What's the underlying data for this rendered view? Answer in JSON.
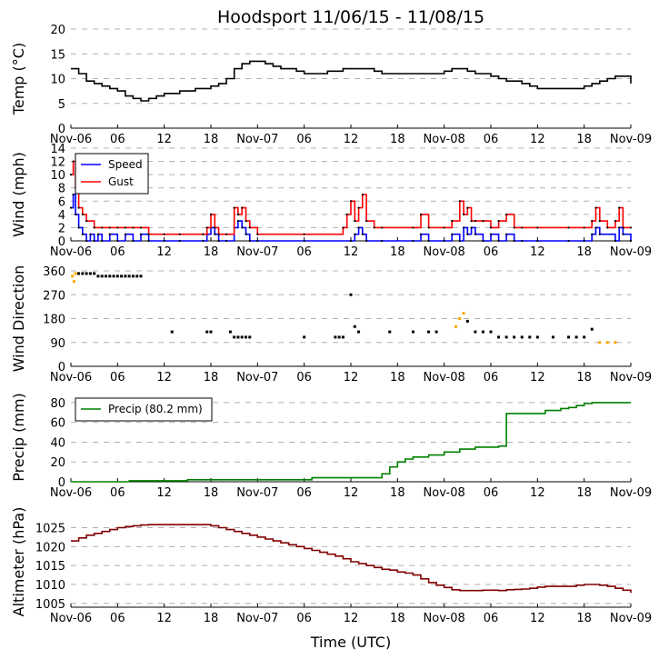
{
  "chart_data": {
    "title": "Hoodsport 11/06/15 - 11/08/15",
    "xlabel": "Time (UTC)",
    "x_unit": "hours since 2015-11-06 00:00 UTC",
    "xlim": [
      0,
      72
    ],
    "x_ticks": [
      {
        "h": 0,
        "label": "Nov-06"
      },
      {
        "h": 6,
        "label": "06"
      },
      {
        "h": 12,
        "label": "12"
      },
      {
        "h": 18,
        "label": "18"
      },
      {
        "h": 24,
        "label": "Nov-07"
      },
      {
        "h": 30,
        "label": "06"
      },
      {
        "h": 36,
        "label": "12"
      },
      {
        "h": 42,
        "label": "18"
      },
      {
        "h": 48,
        "label": "Nov-08"
      },
      {
        "h": 54,
        "label": "06"
      },
      {
        "h": 60,
        "label": "12"
      },
      {
        "h": 66,
        "label": "18"
      },
      {
        "h": 72,
        "label": "Nov-09"
      }
    ],
    "panels": [
      {
        "id": "temp",
        "type": "line",
        "ylabel": "Temp (°C)",
        "ylim": [
          0,
          20
        ],
        "yticks": [
          0,
          5,
          10,
          15,
          20
        ],
        "series": [
          {
            "name": "Temp",
            "color": "#000000",
            "x": [
              0,
              1,
              2,
              3,
              4,
              5,
              6,
              7,
              8,
              9,
              10,
              11,
              12,
              13,
              14,
              15,
              16,
              17,
              18,
              19,
              20,
              21,
              22,
              23,
              24,
              25,
              26,
              27,
              28,
              29,
              30,
              31,
              32,
              33,
              34,
              35,
              36,
              37,
              38,
              39,
              40,
              41,
              42,
              43,
              44,
              45,
              46,
              47,
              48,
              49,
              50,
              51,
              52,
              53,
              54,
              55,
              56,
              57,
              58,
              59,
              60,
              61,
              62,
              63,
              64,
              65,
              66,
              67,
              68,
              69,
              70,
              71,
              72
            ],
            "y": [
              12,
              11,
              9.5,
              9,
              8.5,
              8,
              7.5,
              6.5,
              6,
              5.5,
              6,
              6.5,
              7,
              7,
              7.5,
              7.5,
              8,
              8,
              8.5,
              9,
              10,
              12,
              13,
              13.5,
              13.5,
              13,
              12.5,
              12,
              12,
              11.5,
              11,
              11,
              11,
              11.5,
              11.5,
              12,
              12,
              12,
              12,
              11.5,
              11,
              11,
              11,
              11,
              11,
              11,
              11,
              11,
              11.5,
              12,
              12,
              11.5,
              11,
              11,
              10.5,
              10,
              9.5,
              9.5,
              9,
              8.5,
              8,
              8,
              8,
              8,
              8,
              8,
              8.5,
              9,
              9.5,
              10,
              10.5,
              10.5,
              9
            ]
          }
        ]
      },
      {
        "id": "wind",
        "type": "line",
        "ylabel": "Wind (mph)",
        "ylim": [
          0,
          14
        ],
        "yticks": [
          0,
          2,
          4,
          6,
          8,
          10,
          12,
          14
        ],
        "legend": {
          "position": "top-left"
        },
        "series": [
          {
            "name": "Speed",
            "color": "#0000ff",
            "x": [
              0,
              0.3,
              0.6,
              1,
              1.5,
              2,
              2.5,
              3,
              3.5,
              4,
              5,
              6,
              7,
              8,
              9,
              10,
              12,
              14,
              17,
              17.5,
              18,
              18.5,
              19,
              20,
              21,
              21.5,
              22,
              22.5,
              23,
              24,
              30,
              36,
              36.5,
              37,
              37.5,
              38,
              40,
              44,
              45,
              46,
              48,
              49,
              50,
              50.5,
              51,
              51.5,
              52,
              53,
              54,
              55,
              56,
              57,
              58,
              60,
              64,
              66,
              67,
              67.5,
              68,
              70,
              70.5,
              71,
              72
            ],
            "y": [
              5,
              7,
              4,
              2,
              1,
              0,
              1,
              0,
              1,
              0,
              1,
              0,
              1,
              0,
              1,
              0,
              0,
              0,
              0,
              1,
              2,
              1,
              0,
              0,
              2,
              3,
              2,
              1,
              0,
              0,
              0,
              0,
              1,
              2,
              1,
              0,
              0,
              0,
              1,
              0,
              0,
              1,
              0,
              2,
              1,
              2,
              1,
              0,
              1,
              0,
              1,
              0,
              0,
              0,
              0,
              0,
              1,
              2,
              1,
              0,
              2,
              1,
              0
            ]
          },
          {
            "name": "Gust",
            "color": "#ff0000",
            "x": [
              0,
              0.3,
              0.6,
              1,
              1.5,
              2,
              3,
              4,
              5,
              6,
              7,
              8,
              9,
              10,
              12,
              14,
              17,
              17.5,
              18,
              18.5,
              19,
              20,
              21,
              21.5,
              22,
              22.5,
              23,
              24,
              30,
              35,
              35.5,
              36,
              36.5,
              37,
              37.5,
              38,
              39,
              40,
              44,
              45,
              46,
              48,
              49,
              50,
              50.5,
              51,
              51.5,
              52,
              53,
              54,
              55,
              56,
              57,
              58,
              60,
              64,
              66,
              67,
              67.5,
              68,
              69,
              70,
              70.5,
              71,
              72
            ],
            "y": [
              10,
              12,
              8,
              5,
              4,
              3,
              2,
              2,
              2,
              2,
              2,
              2,
              2,
              1,
              1,
              1,
              1,
              2,
              4,
              2,
              1,
              1,
              5,
              4,
              5,
              3,
              2,
              1,
              1,
              2,
              4,
              6,
              3,
              5,
              7,
              3,
              2,
              2,
              2,
              4,
              2,
              2,
              3,
              6,
              4,
              5,
              3,
              3,
              3,
              2,
              3,
              4,
              2,
              2,
              2,
              2,
              2,
              3,
              5,
              3,
              2,
              3,
              5,
              2,
              2
            ]
          }
        ]
      },
      {
        "id": "winddir",
        "type": "scatter",
        "ylabel": "Wind Direction",
        "ylim": [
          0,
          360
        ],
        "yticks": [
          0,
          90,
          180,
          270,
          360
        ],
        "series": [
          {
            "name": "Direction",
            "color": "#000000",
            "highlight_color": "#ffa500",
            "x": [
              0.2,
              0.4,
              0.6,
              1,
              1.5,
              2,
              2.5,
              3,
              3.5,
              4,
              4.5,
              5,
              5.5,
              6,
              6.5,
              7,
              7.5,
              8,
              8.5,
              9,
              13,
              17.5,
              18,
              20.5,
              21,
              21.5,
              22,
              22.5,
              23,
              30,
              34,
              34.5,
              35,
              36,
              36.5,
              37,
              41,
              44,
              46,
              47,
              49.5,
              50,
              50.5,
              51,
              52,
              53,
              54,
              55,
              56,
              57,
              58,
              59,
              60,
              62,
              64,
              65,
              66,
              67,
              68,
              69,
              70
            ],
            "y": [
              340,
              320,
              350,
              350,
              350,
              350,
              350,
              350,
              340,
              340,
              340,
              340,
              340,
              340,
              340,
              340,
              340,
              340,
              340,
              340,
              130,
              130,
              130,
              130,
              110,
              110,
              110,
              110,
              110,
              110,
              110,
              110,
              110,
              270,
              150,
              130,
              130,
              130,
              130,
              130,
              150,
              180,
              200,
              170,
              130,
              130,
              130,
              110,
              110,
              110,
              110,
              110,
              110,
              110,
              110,
              110,
              110,
              140,
              90,
              90,
              90
            ]
          }
        ]
      },
      {
        "id": "precip",
        "type": "line",
        "ylabel": "Precip (mm)",
        "ylim": [
          0,
          90
        ],
        "yticks": [
          0,
          20,
          40,
          60,
          80
        ],
        "legend": {
          "position": "top-left"
        },
        "series": [
          {
            "name": "Precip (80.2 mm)",
            "color": "#008000",
            "x": [
              0,
              7,
              7.5,
              14,
              15,
              30,
              31,
              38,
              40,
              41,
              42,
              43,
              44,
              46,
              48,
              50,
              52,
              55,
              55.5,
              56,
              60,
              61,
              63,
              64,
              65,
              66,
              67,
              68,
              72
            ],
            "y": [
              0,
              0,
              1,
              1,
              2,
              2,
              4,
              4,
              8,
              15,
              20,
              23,
              25,
              27,
              30,
              33,
              35,
              36,
              36,
              69,
              69,
              72,
              74,
              75,
              77,
              79,
              80,
              80,
              80
            ]
          }
        ]
      },
      {
        "id": "altimeter",
        "type": "line",
        "ylabel": "Altimeter (hPa)",
        "ylim": [
          1004,
          1028
        ],
        "yticks": [
          1005,
          1010,
          1015,
          1020,
          1025
        ],
        "series": [
          {
            "name": "Altimeter",
            "color": "#800000",
            "x": [
              0,
              1,
              2,
              3,
              4,
              5,
              6,
              7,
              8,
              9,
              10,
              12,
              14,
              16,
              18,
              19,
              20,
              21,
              22,
              23,
              24,
              25,
              26,
              27,
              28,
              29,
              30,
              31,
              32,
              33,
              34,
              35,
              36,
              37,
              38,
              39,
              40,
              41,
              42,
              43,
              44,
              45,
              46,
              47,
              48,
              49,
              50,
              51,
              52,
              53,
              54,
              55,
              56,
              57,
              58,
              59,
              60,
              61,
              62,
              63,
              64,
              65,
              66,
              67,
              68,
              69,
              70,
              71,
              72
            ],
            "y": [
              1021.5,
              1022.3,
              1023,
              1023.5,
              1024,
              1024.5,
              1025,
              1025.3,
              1025.5,
              1025.7,
              1025.8,
              1025.8,
              1025.8,
              1025.8,
              1025.5,
              1025,
              1024.5,
              1024,
              1023.5,
              1023,
              1022.5,
              1022,
              1021.5,
              1021,
              1020.5,
              1020,
              1019.5,
              1019,
              1018.5,
              1018,
              1017.5,
              1016.8,
              1016,
              1015.5,
              1015,
              1014.5,
              1014,
              1013.8,
              1013.3,
              1013,
              1012.5,
              1011.5,
              1010.5,
              1009.8,
              1009.2,
              1008.6,
              1008.4,
              1008.4,
              1008.4,
              1008.5,
              1008.5,
              1008.4,
              1008.6,
              1008.7,
              1008.8,
              1009,
              1009.3,
              1009.5,
              1009.5,
              1009.5,
              1009.5,
              1009.8,
              1010,
              1010,
              1009.8,
              1009.5,
              1009,
              1008.5,
              1007.8
            ]
          }
        ]
      }
    ]
  }
}
